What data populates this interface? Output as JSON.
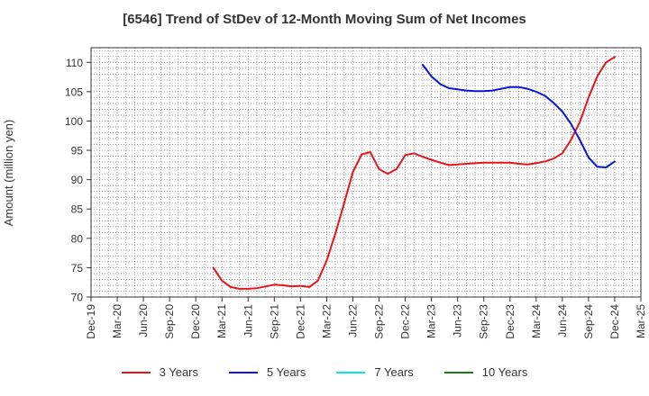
{
  "chart_data": {
    "type": "line",
    "title": "[6546]  Trend of StDev of 12-Month Moving Sum of Net Incomes",
    "xlabel": "",
    "ylabel": "Amount (million yen)",
    "ylim": [
      70,
      112.5
    ],
    "yticks": [
      70,
      75,
      80,
      85,
      90,
      95,
      100,
      105,
      110
    ],
    "x_tick_labels": [
      "Dec-19",
      "Mar-20",
      "Jun-20",
      "Sep-20",
      "Dec-20",
      "Mar-21",
      "Jun-21",
      "Sep-21",
      "Dec-21",
      "Mar-22",
      "Jun-22",
      "Sep-22",
      "Dec-22",
      "Mar-23",
      "Jun-23",
      "Sep-23",
      "Dec-23",
      "Mar-24",
      "Jun-24",
      "Sep-24",
      "Dec-24",
      "Mar-25"
    ],
    "x_start": "Dec-19",
    "x_months": 63,
    "grid": true,
    "legend_position": "bottom",
    "series": [
      {
        "name": "3 Years",
        "color": "#e8141b",
        "x": [
          "Feb-21",
          "Mar-21",
          "Apr-21",
          "May-21",
          "Jun-21",
          "Jul-21",
          "Aug-21",
          "Sep-21",
          "Oct-21",
          "Nov-21",
          "Dec-21",
          "Jan-22",
          "Feb-22",
          "Mar-22",
          "Apr-22",
          "May-22",
          "Jun-22",
          "Jul-22",
          "Aug-22",
          "Sep-22",
          "Oct-22",
          "Nov-22",
          "Dec-22",
          "Jan-23",
          "Feb-23",
          "Mar-23",
          "Apr-23",
          "May-23",
          "Jun-23",
          "Jul-23",
          "Aug-23",
          "Sep-23",
          "Oct-23",
          "Nov-23",
          "Dec-23",
          "Jan-24",
          "Feb-24",
          "Mar-24",
          "Apr-24",
          "May-24",
          "Jun-24",
          "Jul-24",
          "Aug-24",
          "Sep-24",
          "Oct-24",
          "Nov-24",
          "Dec-24"
        ],
        "values": [
          75.0,
          72.8,
          71.7,
          71.4,
          71.4,
          71.5,
          71.8,
          72.1,
          72.0,
          71.8,
          71.9,
          71.7,
          72.8,
          76.2,
          80.8,
          86.0,
          91.3,
          94.3,
          94.7,
          91.8,
          91.0,
          91.8,
          94.2,
          94.5,
          93.9,
          93.4,
          92.9,
          92.5,
          92.6,
          92.7,
          92.8,
          92.9,
          92.9,
          92.9,
          92.9,
          92.7,
          92.6,
          92.8,
          93.1,
          93.6,
          94.5,
          96.8,
          99.8,
          104.0,
          107.6,
          110.0,
          110.9
        ]
      },
      {
        "name": "5 Years",
        "color": "#0a16d6",
        "x": [
          "Feb-23",
          "Mar-23",
          "Apr-23",
          "May-23",
          "Jun-23",
          "Jul-23",
          "Aug-23",
          "Sep-23",
          "Oct-23",
          "Nov-23",
          "Dec-23",
          "Jan-24",
          "Feb-24",
          "Mar-24",
          "Apr-24",
          "May-24",
          "Jun-24",
          "Jul-24",
          "Aug-24",
          "Sep-24",
          "Oct-24",
          "Nov-24",
          "Dec-24"
        ],
        "values": [
          109.6,
          107.6,
          106.3,
          105.6,
          105.4,
          105.2,
          105.1,
          105.1,
          105.2,
          105.5,
          105.8,
          105.8,
          105.5,
          105.0,
          104.3,
          103.1,
          101.6,
          99.5,
          96.8,
          93.8,
          92.2,
          92.1,
          93.1
        ]
      },
      {
        "name": "7 Years",
        "color": "#00e5ee",
        "x": [],
        "values": []
      },
      {
        "name": "10 Years",
        "color": "#1a7a1a",
        "x": [],
        "values": []
      }
    ]
  }
}
